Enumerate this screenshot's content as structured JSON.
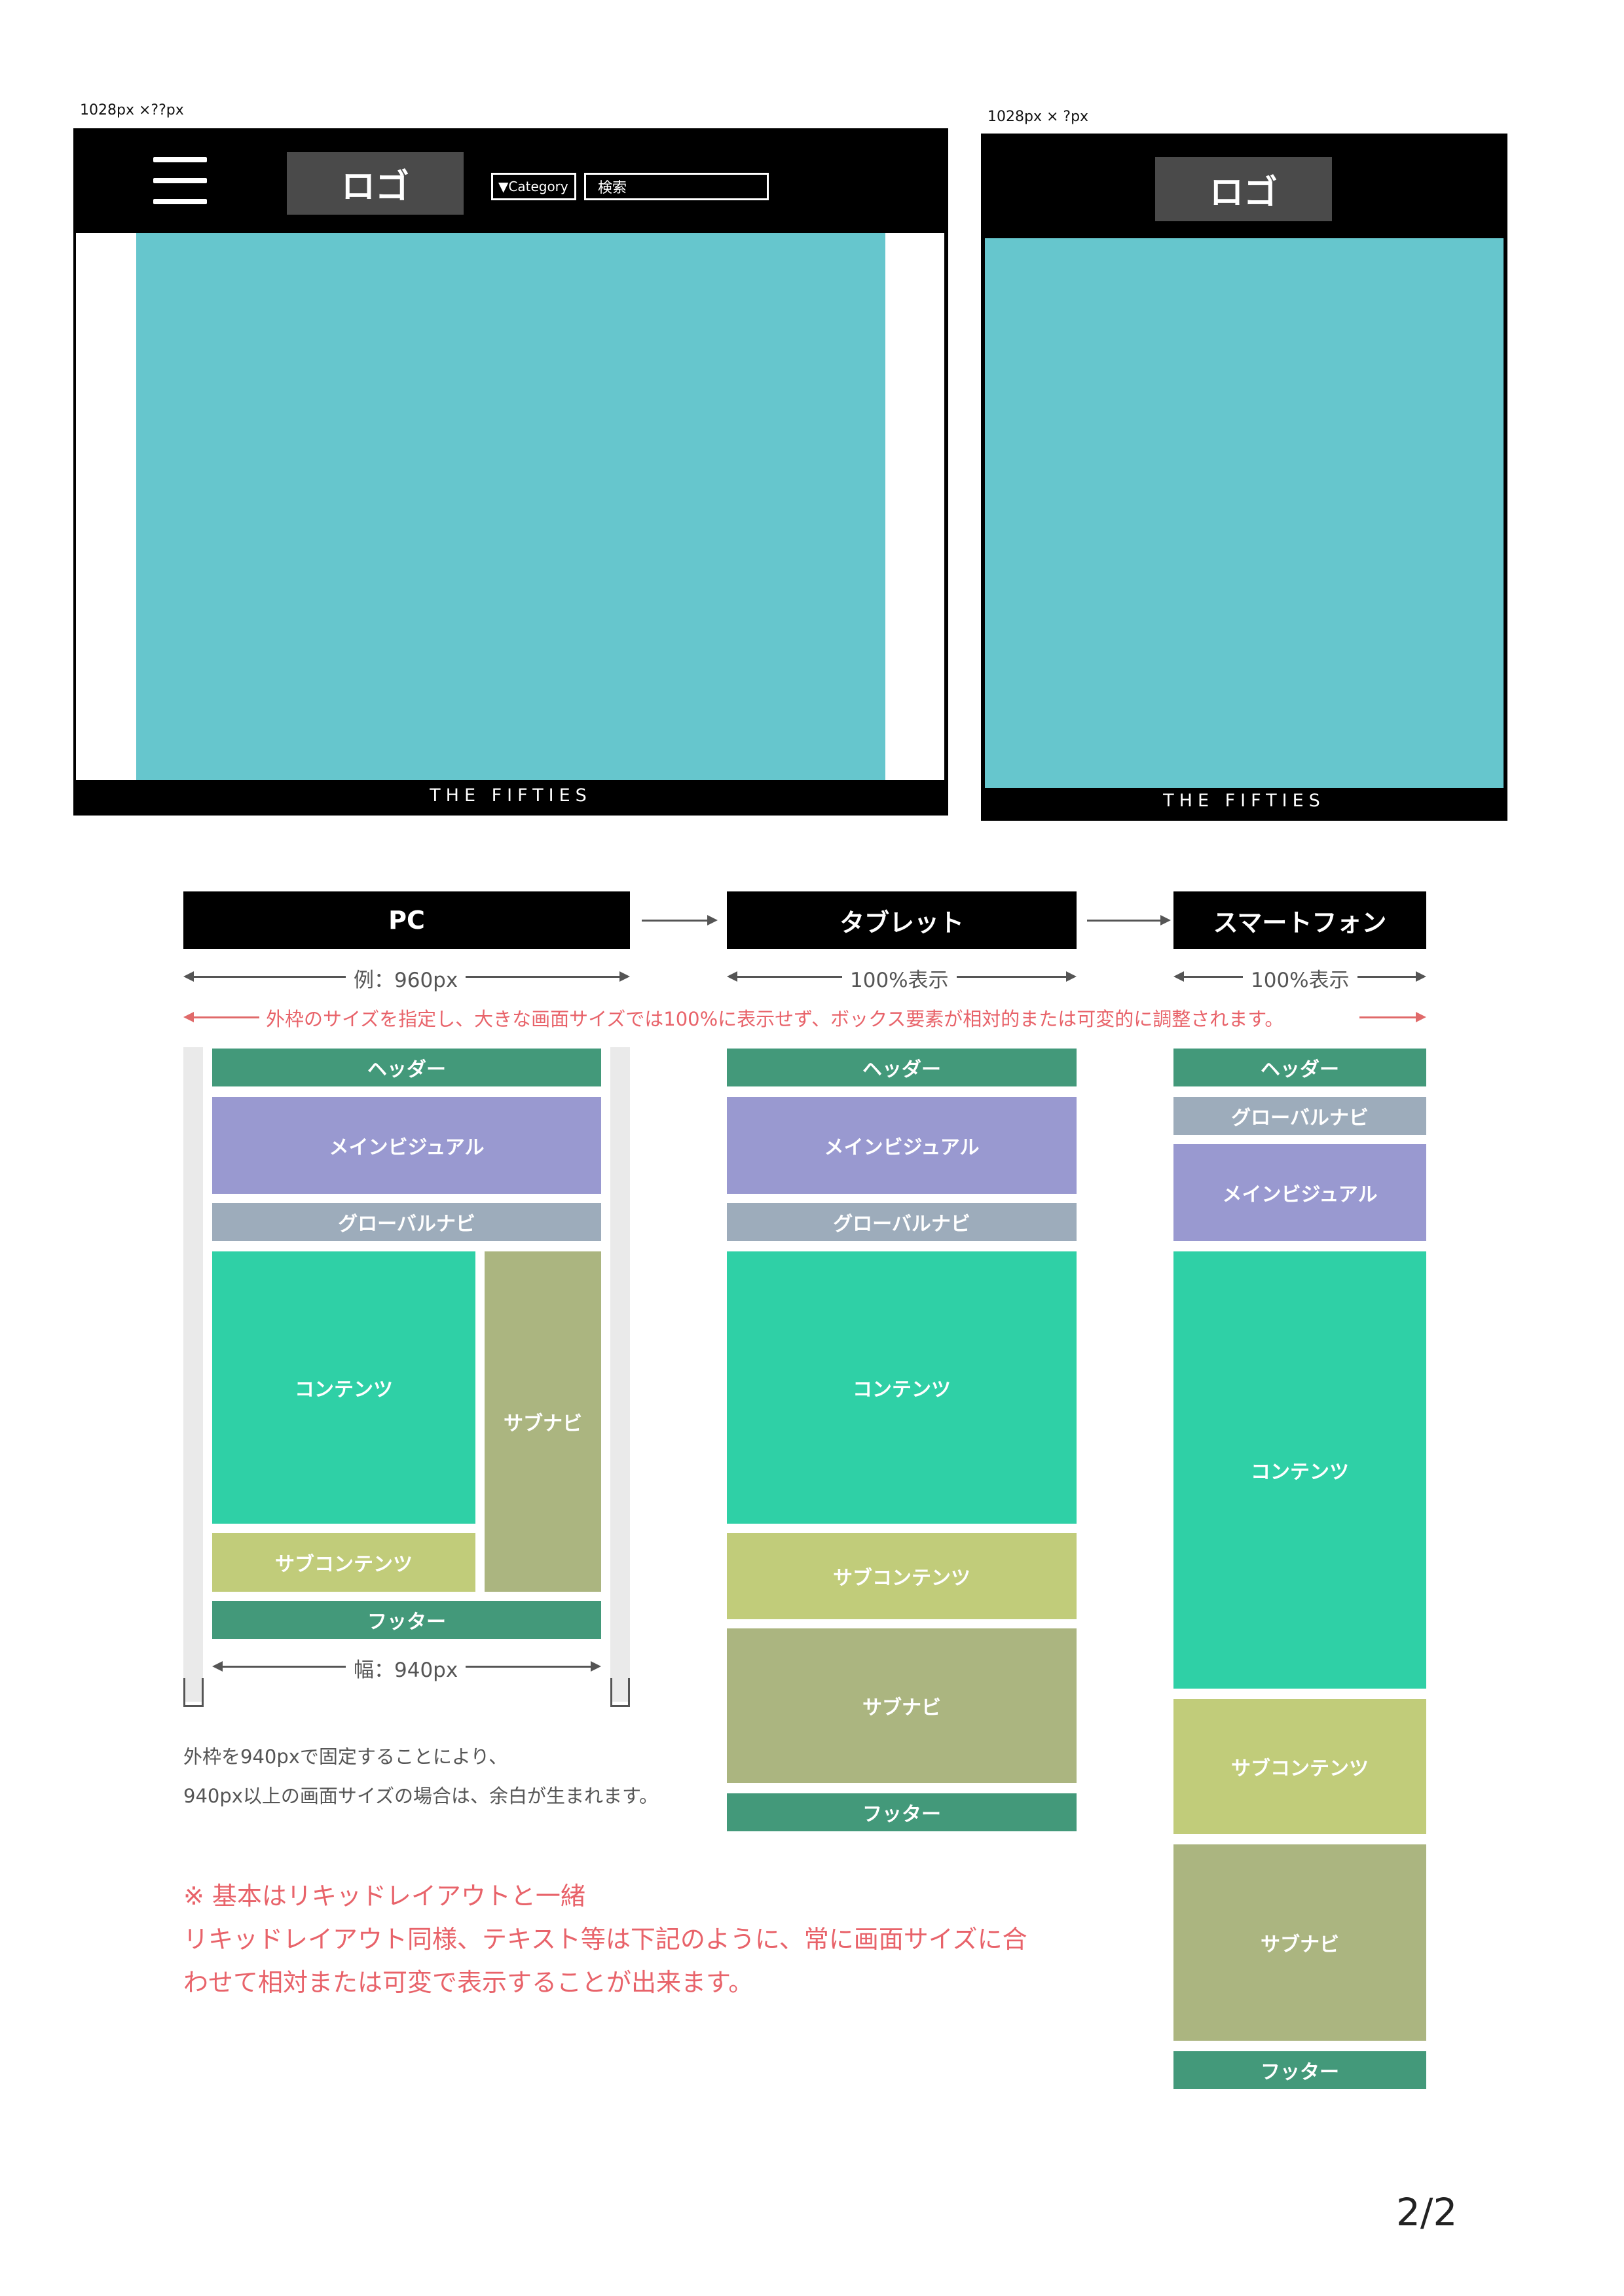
{
  "mockups": {
    "pc": {
      "size_label": "1028px ×??px",
      "logo": "ロゴ",
      "category": "▼Category",
      "search": "検索",
      "footer": "THE  FIFTIES"
    },
    "mobile": {
      "size_label": "1028px × ?px",
      "logo": "ロゴ",
      "footer": "THE  FIFTIES"
    }
  },
  "diagram": {
    "heads": {
      "pc": "PC",
      "tablet": "タブレット",
      "smartphone": "スマートフォン"
    },
    "dims": {
      "pc": "例：960px",
      "tablet": "100%表示",
      "smartphone": "100%表示",
      "inner": "幅：940px"
    },
    "red_caption": "外枠のサイズを指定し、大きな画面サイズでは100%に表示せず、ボックス要素が相対的または可変的に調整されます。",
    "labels": {
      "header": "ヘッダー",
      "main_visual": "メインビジュアル",
      "global_nav": "グローバルナビ",
      "contents": "コンテンツ",
      "sub_nav": "サブナビ",
      "sub_contents": "サブコンテンツ",
      "footer": "フッター"
    },
    "pc_note_1": "外枠を940pxで固定することにより、",
    "pc_note_2": "940px以上の画面サイズの場合は、余白が生まれます。",
    "red_note_1": "※ 基本はリキッドレイアウトと一緒",
    "red_note_2": "リキッドレイアウト同様、テキスト等は下記のように、常に画面サイズに合",
    "red_note_3": "わせて相対または可変で表示することが出来ます。"
  },
  "colors": {
    "header": "#43997a",
    "main_visual": "#9999d0",
    "global_nav": "#9dacbb",
    "contents": "#2fd0a6",
    "sub_nav": "#abb580",
    "sub_contents": "#c1cc7a",
    "footer": "#43997a",
    "screen": "#66c6cd",
    "red": "#e8636a"
  },
  "page_number": "2/2"
}
